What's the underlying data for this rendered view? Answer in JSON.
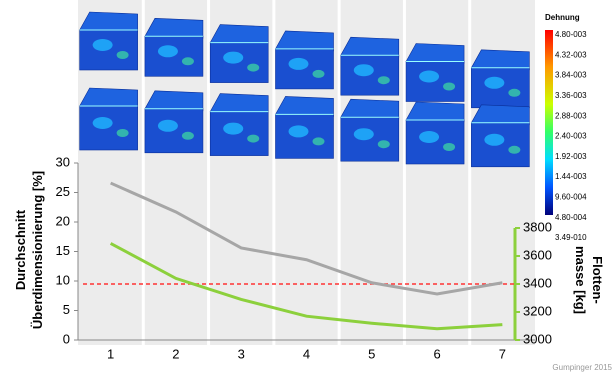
{
  "chart_data": {
    "type": "line",
    "categories": [
      "1",
      "2",
      "3",
      "4",
      "5",
      "6",
      "7"
    ],
    "ylabel": [
      "Durchschnitt",
      "Überdimensionierung [%]"
    ],
    "y2label": [
      "Flotten-",
      "masse [kg]"
    ],
    "ylim": [
      0,
      30
    ],
    "yticks": [
      0,
      5,
      10,
      15,
      20,
      25,
      30
    ],
    "y2lim": [
      3000,
      3800
    ],
    "y2ticks": [
      3000,
      3200,
      3400,
      3600,
      3800
    ],
    "series": [
      {
        "color": "#a6a6a6",
        "values": [
          26.6,
          21.7,
          15.6,
          13.6,
          9.7,
          7.8,
          9.7
        ]
      },
      {
        "color": "#8cd03c",
        "axis": "y2",
        "values": [
          3690,
          3440,
          3290,
          3170,
          3120,
          3080,
          3110
        ]
      }
    ],
    "reference_line": {
      "value": 9.5,
      "color": "#ff3333"
    },
    "y2_axis_color": "#8cd03c",
    "legend": {
      "title": "Dehnung",
      "labels": [
        "4.80-003",
        "4.32-003",
        "3.84-003",
        "3.36-003",
        "2.88-003",
        "2.40-003",
        "1.92-003",
        "1.44-003",
        "9.60-004",
        "4.80-004",
        "3.49-010"
      ]
    },
    "credit": "Gumpinger 2015"
  }
}
